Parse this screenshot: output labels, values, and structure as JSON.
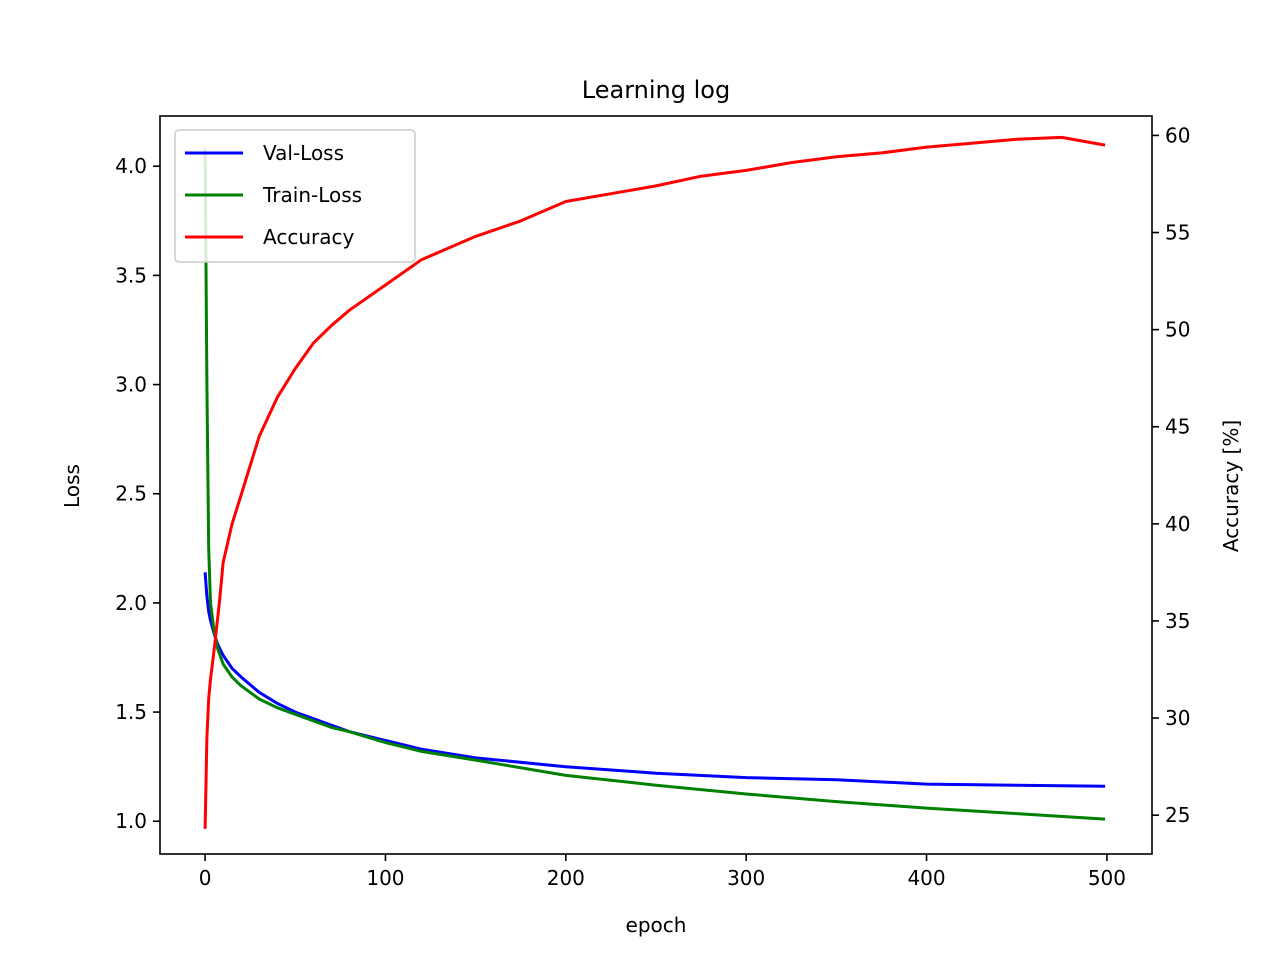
{
  "chart_data": {
    "type": "line",
    "title": "Learning log",
    "xlabel": "epoch",
    "ylabel_left": "Loss",
    "ylabel_right": "Accuracy [%]",
    "xlim": [
      -25,
      525
    ],
    "ylim_left": [
      0.85,
      4.23
    ],
    "ylim_right": [
      23.0,
      61.0
    ],
    "x_ticks": [
      0,
      100,
      200,
      300,
      400,
      500
    ],
    "y_ticks_left": [
      1.0,
      1.5,
      2.0,
      2.5,
      3.0,
      3.5,
      4.0
    ],
    "y_ticks_left_labels": [
      "1.0",
      "1.5",
      "2.0",
      "2.5",
      "3.0",
      "3.5",
      "4.0"
    ],
    "y_ticks_right": [
      25,
      30,
      35,
      40,
      45,
      50,
      55,
      60
    ],
    "legend_position": "upper-left",
    "grid": false,
    "series": [
      {
        "name": "Val-Loss",
        "axis": "left",
        "color": "#0000ff",
        "x": [
          0,
          1,
          2,
          3,
          5,
          7,
          10,
          15,
          20,
          30,
          40,
          50,
          60,
          70,
          80,
          100,
          120,
          150,
          200,
          250,
          300,
          350,
          400,
          450,
          499
        ],
        "y": [
          2.14,
          2.03,
          1.96,
          1.92,
          1.86,
          1.81,
          1.76,
          1.7,
          1.66,
          1.59,
          1.54,
          1.5,
          1.47,
          1.44,
          1.41,
          1.37,
          1.33,
          1.29,
          1.25,
          1.22,
          1.2,
          1.19,
          1.17,
          1.165,
          1.16
        ]
      },
      {
        "name": "Train-Loss",
        "axis": "left",
        "color": "#008000",
        "x": [
          0,
          1,
          2,
          3,
          5,
          7,
          10,
          15,
          20,
          30,
          40,
          50,
          60,
          70,
          80,
          100,
          120,
          150,
          200,
          250,
          300,
          350,
          400,
          450,
          499
        ],
        "y": [
          4.08,
          3.0,
          2.25,
          2.0,
          1.87,
          1.79,
          1.72,
          1.66,
          1.62,
          1.56,
          1.52,
          1.49,
          1.46,
          1.43,
          1.41,
          1.36,
          1.32,
          1.28,
          1.21,
          1.165,
          1.125,
          1.09,
          1.06,
          1.035,
          1.01
        ]
      },
      {
        "name": "Accuracy",
        "axis": "right",
        "color": "#ff0000",
        "x": [
          0,
          1,
          2,
          3,
          5,
          8,
          10,
          15,
          20,
          25,
          30,
          40,
          50,
          60,
          70,
          80,
          100,
          120,
          150,
          175,
          200,
          225,
          250,
          275,
          300,
          325,
          350,
          375,
          400,
          425,
          450,
          475,
          499
        ],
        "y": [
          24.3,
          29.0,
          31.0,
          32.0,
          33.5,
          36.0,
          38.0,
          40.0,
          41.5,
          43.0,
          44.5,
          46.5,
          48.0,
          49.3,
          50.2,
          51.0,
          52.3,
          53.6,
          54.8,
          55.6,
          56.6,
          57.0,
          57.4,
          57.9,
          58.2,
          58.6,
          58.9,
          59.1,
          59.4,
          59.6,
          59.8,
          59.9,
          59.5
        ]
      }
    ]
  }
}
